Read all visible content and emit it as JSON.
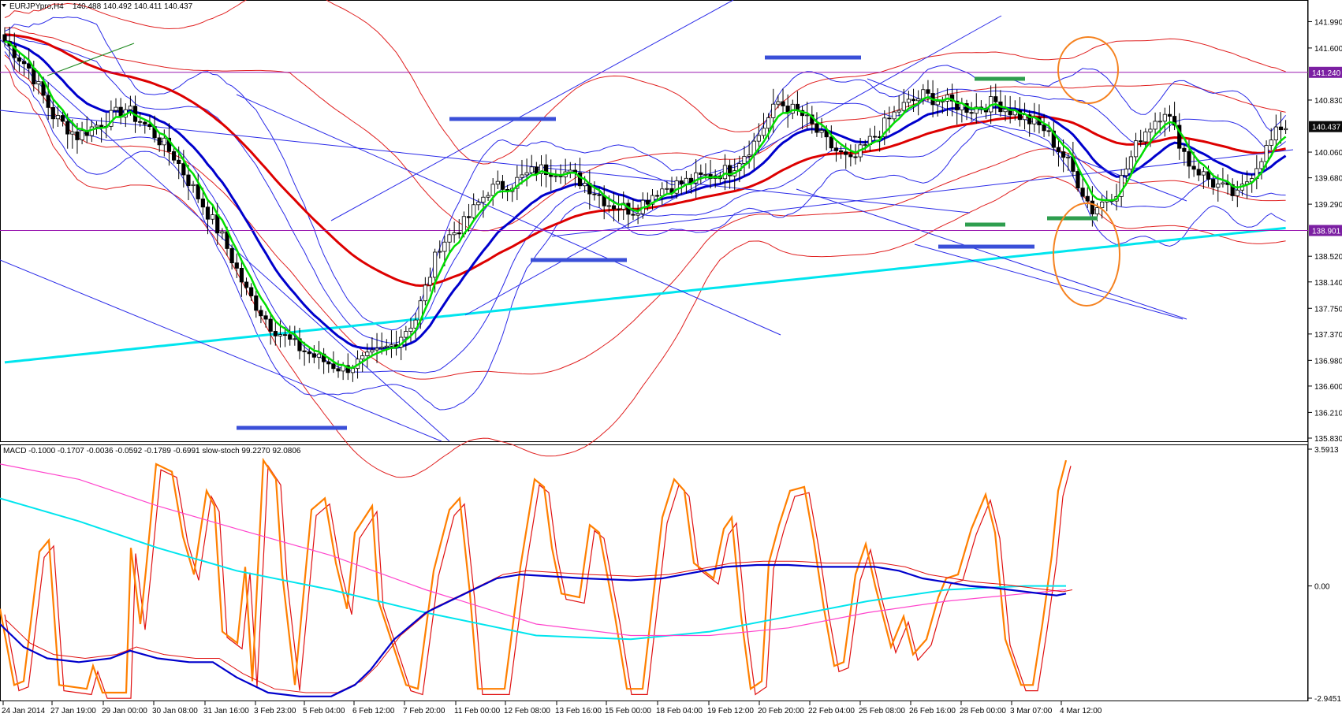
{
  "window": {
    "symbol": "EURJPYpro,H4",
    "ohlc": "140.488 140.492 140.411 140.437",
    "indicator_caption": "MACD -0.1000 -0.1707 -0.0036 -0.0592 -0.1789 -0.6991  slow-stoch 99.2270 92.0806"
  },
  "colors": {
    "background": "#ffffff",
    "bull_candle": "#ffffff",
    "bear_candle": "#000000",
    "ema_green": "#00dd00",
    "ma_blue": "#0000cc",
    "ma_red_thick": "#dd0000",
    "bands_blue": "#2a2ae8",
    "bands_red": "#e02020",
    "sma_cyan": "#00e5ee",
    "horizontal_level": "#9a1ab0",
    "annotation_circle": "#f58220",
    "stoch_main": "#ff7f00",
    "stoch_signal": "#e01010",
    "macd_pink": "#ff44cc",
    "price_tag": "#0a0a0a",
    "level_tag": "#7b1fa2"
  },
  "chart_data": [
    {
      "type": "candlestick",
      "title": "EURJPYpro,H4",
      "ylim": [
        135.83,
        142.1
      ],
      "y_ticks": [
        "141.990",
        "141.600",
        "140.830",
        "140.060",
        "139.680",
        "139.290",
        "138.520",
        "138.140",
        "137.750",
        "137.370",
        "136.980",
        "136.600",
        "136.210",
        "135.830"
      ],
      "x_ticks": [
        "24 Jan 2014",
        "27 Jan 19:00",
        "29 Jan 00:00",
        "30 Jan 08:00",
        "31 Jan 16:00",
        "3 Feb 23:00",
        "5 Feb 04:00",
        "6 Feb 12:00",
        "7 Feb 20:00",
        "11 Feb 00:00",
        "12 Feb 08:00",
        "13 Feb 16:00",
        "15 Feb 00:00",
        "18 Feb 04:00",
        "19 Feb 12:00",
        "20 Feb 20:00",
        "22 Feb 04:00",
        "25 Feb 08:00",
        "26 Feb 16:00",
        "28 Feb 00:00",
        "3 Mar 07:00",
        "4 Mar 12:00"
      ],
      "current_price": "140.437",
      "levels": [
        {
          "label": "141.240",
          "value": 141.24
        },
        {
          "label": "138.901",
          "value": 138.901
        }
      ],
      "price_path": [
        [
          0,
          141.7
        ],
        [
          5,
          141.3
        ],
        [
          10,
          140.6
        ],
        [
          15,
          140.3
        ],
        [
          20,
          140.5
        ],
        [
          25,
          140.7
        ],
        [
          30,
          140.4
        ],
        [
          35,
          140.0
        ],
        [
          40,
          139.4
        ],
        [
          45,
          138.8
        ],
        [
          50,
          138.0
        ],
        [
          55,
          137.5
        ],
        [
          60,
          137.2
        ],
        [
          65,
          137.0
        ],
        [
          70,
          136.85
        ],
        [
          75,
          137.0
        ],
        [
          80,
          137.2
        ],
        [
          85,
          137.6
        ],
        [
          90,
          138.7
        ],
        [
          95,
          139.0
        ],
        [
          100,
          139.5
        ],
        [
          105,
          139.6
        ],
        [
          110,
          139.8
        ],
        [
          115,
          139.8
        ],
        [
          120,
          139.6
        ],
        [
          125,
          139.3
        ],
        [
          130,
          139.2
        ],
        [
          135,
          139.5
        ],
        [
          140,
          139.6
        ],
        [
          145,
          139.7
        ],
        [
          150,
          139.8
        ],
        [
          155,
          140.2
        ],
        [
          160,
          140.8
        ],
        [
          165,
          140.6
        ],
        [
          170,
          140.2
        ],
        [
          175,
          139.9
        ],
        [
          180,
          140.3
        ],
        [
          185,
          140.7
        ],
        [
          190,
          140.9
        ],
        [
          195,
          140.8
        ],
        [
          200,
          140.7
        ],
        [
          205,
          140.8
        ],
        [
          210,
          140.6
        ],
        [
          215,
          140.4
        ],
        [
          220,
          139.9
        ],
        [
          225,
          139.2
        ],
        [
          230,
          139.5
        ],
        [
          235,
          140.3
        ],
        [
          240,
          140.7
        ],
        [
          245,
          139.9
        ],
        [
          250,
          139.6
        ],
        [
          255,
          139.4
        ],
        [
          260,
          140.0
        ],
        [
          264,
          140.44
        ]
      ],
      "series_names": []
    },
    {
      "type": "line",
      "title": "MACD + slow-stoch",
      "ylim": [
        -2.9451,
        3.5913
      ],
      "y_ticks": [
        "3.5913",
        "0.00",
        "-2.9451"
      ]
    }
  ]
}
